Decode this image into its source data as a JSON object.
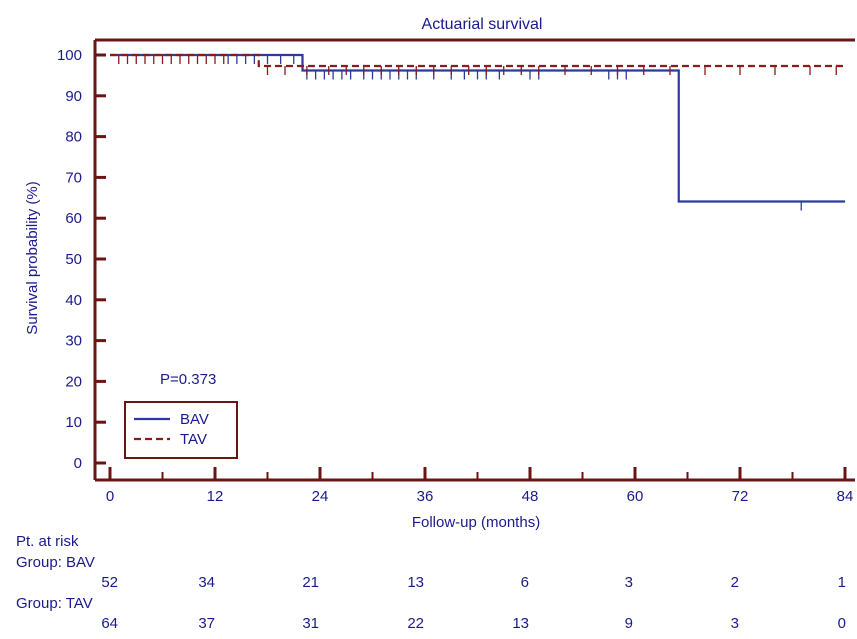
{
  "chart_data": {
    "type": "line",
    "subtype": "kaplan-meier",
    "title": "Actuarial survival",
    "xlabel": "Follow-up (months)",
    "ylabel": "Survival probability (%)",
    "xlim": [
      0,
      84
    ],
    "ylim": [
      0,
      100
    ],
    "x_ticks": [
      0,
      12,
      24,
      36,
      48,
      60,
      72,
      84
    ],
    "y_ticks": [
      0,
      10,
      20,
      30,
      40,
      50,
      60,
      70,
      80,
      90,
      100
    ],
    "grid": false,
    "annotation": "P=0.373",
    "legend_position": "bottom-left",
    "series": [
      {
        "name": "BAV",
        "color": "#2b3a9c",
        "style": "solid",
        "steps": [
          [
            0,
            100
          ],
          [
            22,
            100
          ],
          [
            22,
            96.2
          ],
          [
            65,
            96.2
          ],
          [
            65,
            64.1
          ],
          [
            84,
            64.1
          ]
        ],
        "censor_marks": [
          [
            13.5,
            100
          ],
          [
            14.5,
            100
          ],
          [
            15.5,
            100
          ],
          [
            16.5,
            100
          ],
          [
            18,
            100
          ],
          [
            19.5,
            100
          ],
          [
            21,
            100
          ],
          [
            22.5,
            96.2
          ],
          [
            23.5,
            96.2
          ],
          [
            24.5,
            96.2
          ],
          [
            25.5,
            96.2
          ],
          [
            26.5,
            96.2
          ],
          [
            27.5,
            96.2
          ],
          [
            29,
            96.2
          ],
          [
            30,
            96.2
          ],
          [
            31,
            96.2
          ],
          [
            32,
            96.2
          ],
          [
            33,
            96.2
          ],
          [
            34,
            96.2
          ],
          [
            35,
            96.2
          ],
          [
            37,
            96.2
          ],
          [
            39,
            96.2
          ],
          [
            40.5,
            96.2
          ],
          [
            42,
            96.2
          ],
          [
            43,
            96.2
          ],
          [
            44.5,
            96.2
          ],
          [
            48,
            96.2
          ],
          [
            49,
            96.2
          ],
          [
            57,
            96.2
          ],
          [
            58,
            96.2
          ],
          [
            59,
            96.2
          ],
          [
            79,
            64.1
          ]
        ]
      },
      {
        "name": "TAV",
        "color": "#8b1a1a",
        "style": "dashed",
        "steps": [
          [
            0,
            100
          ],
          [
            17,
            100
          ],
          [
            17,
            97.3
          ],
          [
            84,
            97.3
          ]
        ],
        "censor_marks": [
          [
            1,
            100
          ],
          [
            2,
            100
          ],
          [
            3,
            100
          ],
          [
            4,
            100
          ],
          [
            5,
            100
          ],
          [
            6,
            100
          ],
          [
            7,
            100
          ],
          [
            8,
            100
          ],
          [
            9,
            100
          ],
          [
            10,
            100
          ],
          [
            11,
            100
          ],
          [
            12,
            100
          ],
          [
            13,
            100
          ],
          [
            18,
            97.3
          ],
          [
            20,
            97.3
          ],
          [
            22.5,
            97.3
          ],
          [
            25,
            97.3
          ],
          [
            27,
            97.3
          ],
          [
            29,
            97.3
          ],
          [
            31,
            97.3
          ],
          [
            33,
            97.3
          ],
          [
            35,
            97.3
          ],
          [
            37,
            97.3
          ],
          [
            39,
            97.3
          ],
          [
            41,
            97.3
          ],
          [
            43,
            97.3
          ],
          [
            45,
            97.3
          ],
          [
            47,
            97.3
          ],
          [
            49,
            97.3
          ],
          [
            52,
            97.3
          ],
          [
            55,
            97.3
          ],
          [
            58,
            97.3
          ],
          [
            61,
            97.3
          ],
          [
            64,
            97.3
          ],
          [
            68,
            97.3
          ],
          [
            72,
            97.3
          ],
          [
            76,
            97.3
          ],
          [
            80,
            97.3
          ],
          [
            83,
            97.3
          ]
        ]
      }
    ],
    "risk_table": {
      "header": "Pt. at risk",
      "groups": [
        {
          "label": "Group: BAV",
          "counts": [
            52,
            34,
            21,
            13,
            6,
            3,
            2,
            1
          ]
        },
        {
          "label": "Group: TAV",
          "counts": [
            64,
            37,
            31,
            22,
            13,
            9,
            3,
            0
          ]
        }
      ]
    },
    "colors": {
      "axis": "#6b1414",
      "text": "#1a1a8c"
    }
  }
}
